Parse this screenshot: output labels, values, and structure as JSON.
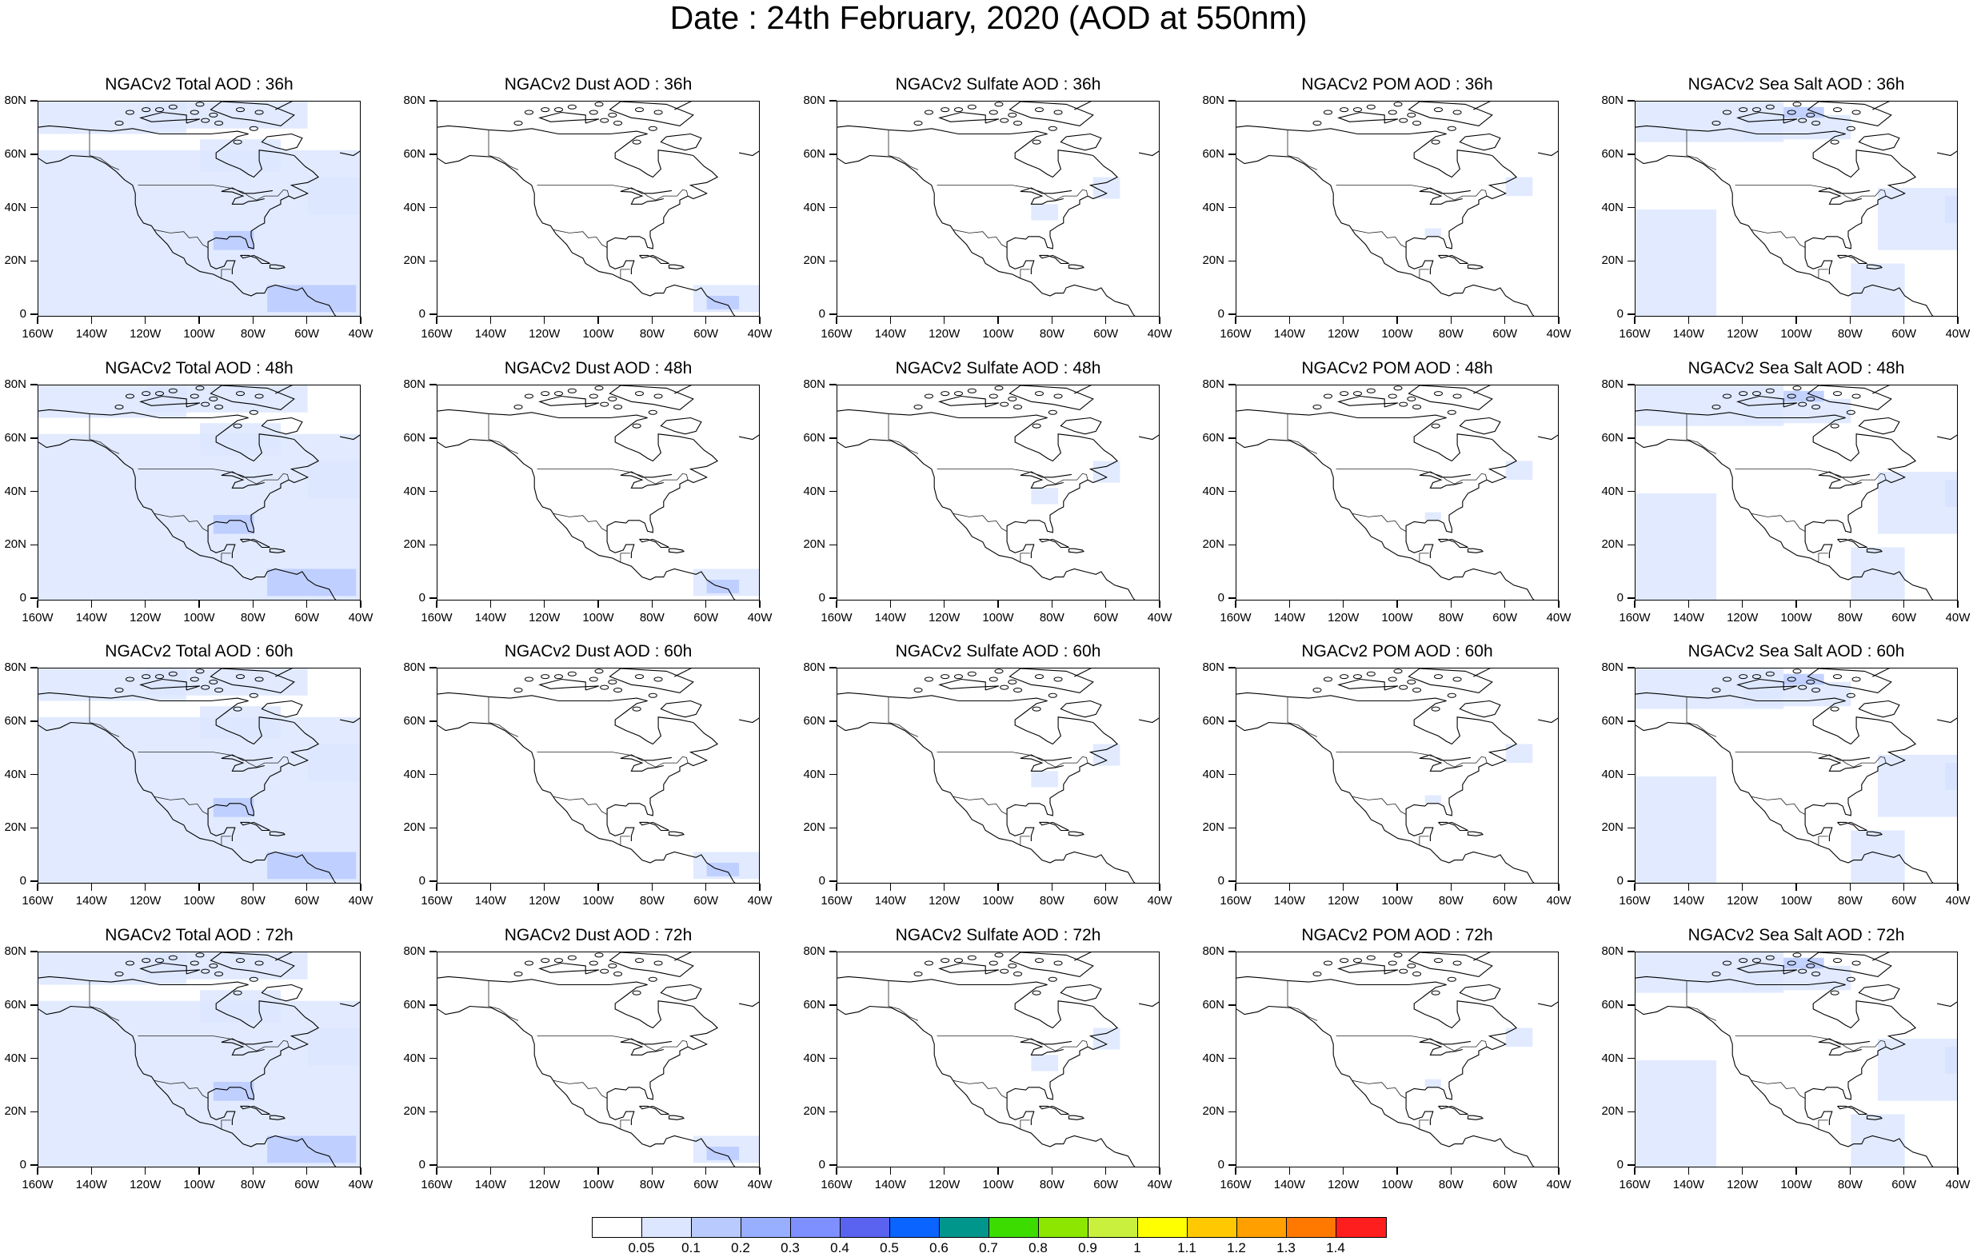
{
  "title": "Date : 24th February, 2020 (AOD at 550nm)",
  "y_ticks": [
    "80N",
    "60N",
    "40N",
    "20N",
    "0"
  ],
  "x_ticks": [
    "160W",
    "140W",
    "120W",
    "100W",
    "80W",
    "60W",
    "40W"
  ],
  "panels": [
    [
      "NGACv2 Total AOD : 36h",
      "NGACv2 Dust AOD : 36h",
      "NGACv2 Sulfate AOD : 36h",
      "NGACv2 POM AOD : 36h",
      "NGACv2 Sea Salt AOD : 36h"
    ],
    [
      "NGACv2 Total AOD : 48h",
      "NGACv2 Dust AOD : 48h",
      "NGACv2 Sulfate AOD : 48h",
      "NGACv2 POM AOD : 48h",
      "NGACv2 Sea Salt AOD : 48h"
    ],
    [
      "NGACv2 Total AOD : 60h",
      "NGACv2 Dust AOD : 60h",
      "NGACv2 Sulfate AOD : 60h",
      "NGACv2 POM AOD : 60h",
      "NGACv2 Sea Salt AOD : 60h"
    ],
    [
      "NGACv2 Total AOD : 72h",
      "NGACv2 Dust AOD : 72h",
      "NGACv2 Sulfate AOD : 72h",
      "NGACv2 POM AOD : 72h",
      "NGACv2 Sea Salt  AOD : 72h"
    ]
  ],
  "colorbar": {
    "labels": [
      "0.05",
      "0.1",
      "0.2",
      "0.3",
      "0.4",
      "0.5",
      "0.6",
      "0.7",
      "0.8",
      "0.9",
      "1",
      "1.1",
      "1.2",
      "1.3",
      "1.4"
    ],
    "colors": [
      "#ffffff",
      "#dce6ff",
      "#b9caff",
      "#98aeff",
      "#7e90ff",
      "#5a63f0",
      "#0a64ff",
      "#00968c",
      "#3cdc00",
      "#8ce600",
      "#c8f03c",
      "#ffff00",
      "#ffc800",
      "#ffa000",
      "#ff7800",
      "#ff1e1e"
    ]
  }
}
